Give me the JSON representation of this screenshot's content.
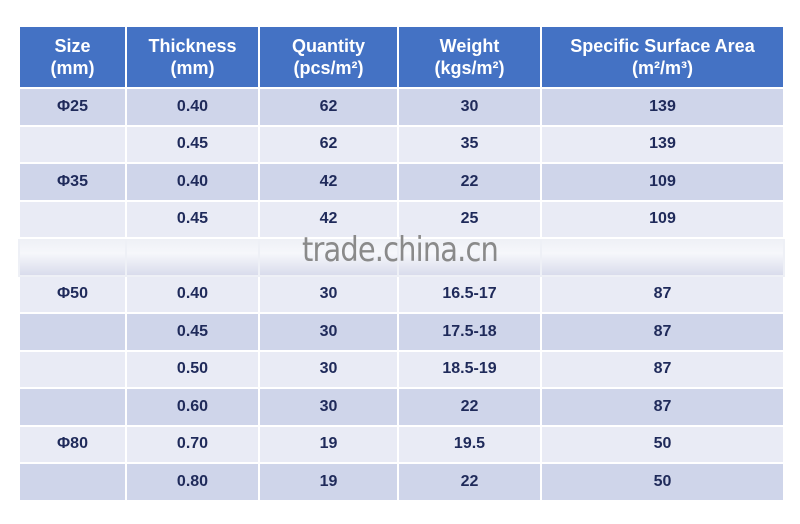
{
  "table": {
    "headers": [
      [
        "Size",
        "(mm)"
      ],
      [
        "Thickness",
        "(mm)"
      ],
      [
        "Quantity",
        "(pcs/m²)"
      ],
      [
        "Weight",
        "(kgs/m²)"
      ],
      [
        "Specific Surface Area",
        "(m²/m³)"
      ]
    ],
    "rows": [
      [
        "Φ25",
        "0.40",
        "62",
        "30",
        "139"
      ],
      [
        "",
        "0.45",
        "62",
        "35",
        "139"
      ],
      [
        "Φ35",
        "0.40",
        "42",
        "22",
        "109"
      ],
      [
        "",
        "0.45",
        "42",
        "25",
        "109"
      ],
      [
        "",
        "",
        "",
        "",
        ""
      ],
      [
        "Φ50",
        "0.40",
        "30",
        "16.5-17",
        "87"
      ],
      [
        "",
        "0.45",
        "30",
        "17.5-18",
        "87"
      ],
      [
        "",
        "0.50",
        "30",
        "18.5-19",
        "87"
      ],
      [
        "",
        "0.60",
        "30",
        "22",
        "87"
      ],
      [
        "Φ80",
        "0.70",
        "19",
        "19.5",
        "50"
      ],
      [
        "",
        "0.80",
        "19",
        "22",
        "50"
      ]
    ]
  },
  "watermark": "trade.china.cn",
  "colors": {
    "header": "#4472c4",
    "row_dark": "#cfd5ea",
    "row_light": "#e9ebf5",
    "text": "#1f2a5a"
  }
}
